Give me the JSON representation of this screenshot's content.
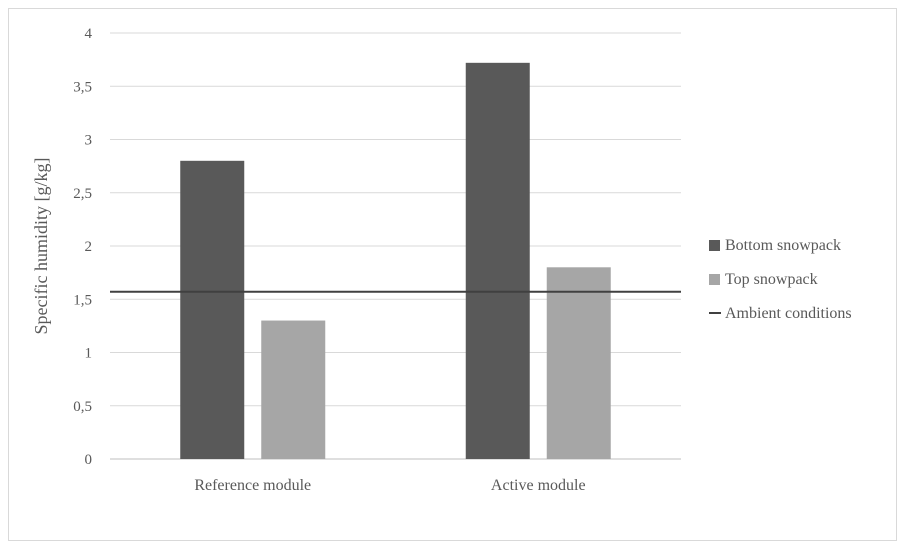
{
  "chart_data": {
    "type": "bar",
    "title": "",
    "xlabel": "",
    "ylabel": "Specific humidity [g/kg]",
    "categories": [
      "Reference module",
      "Active module"
    ],
    "series": [
      {
        "name": "Bottom snowpack",
        "type": "bar",
        "color": "#595959",
        "values": [
          2.8,
          3.72
        ]
      },
      {
        "name": "Top snowpack",
        "type": "bar",
        "color": "#a6a6a6",
        "values": [
          1.3,
          1.8
        ]
      },
      {
        "name": "Ambient conditions",
        "type": "line",
        "color": "#404040",
        "value": 1.57
      }
    ],
    "ylim": [
      0,
      4
    ],
    "yticks": [
      "0",
      "0,5",
      "1",
      "1,5",
      "2",
      "2,5",
      "3",
      "3,5",
      "4"
    ],
    "grid": true,
    "legend_position": "right"
  }
}
